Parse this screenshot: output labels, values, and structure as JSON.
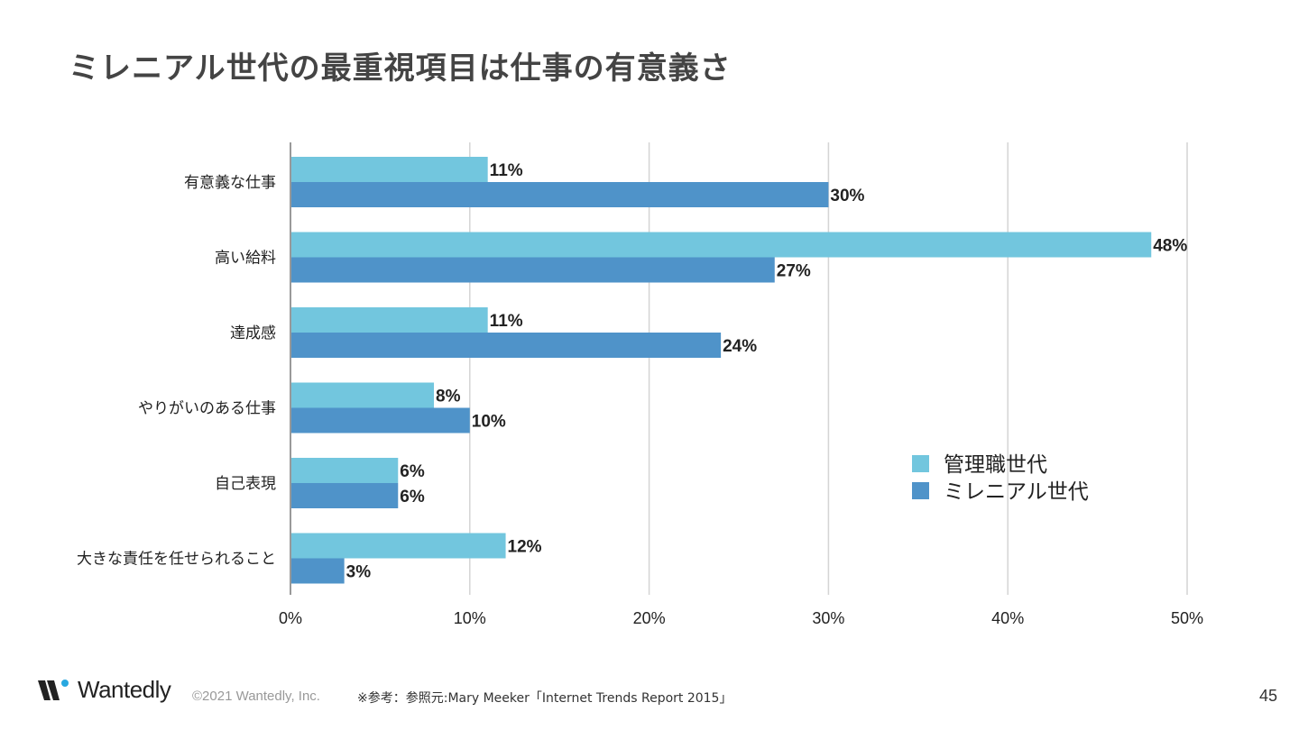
{
  "title": "ミレニアル世代の最重視項目は仕事の有意義さ",
  "chart_data": {
    "type": "bar",
    "orientation": "horizontal",
    "categories": [
      "有意義な仕事",
      "高い給料",
      "達成感",
      "やりがいのある仕事",
      "自己表現",
      "大きな責任を任せられること"
    ],
    "series": [
      {
        "name": "管理職世代",
        "values": [
          11,
          48,
          11,
          8,
          6,
          12
        ],
        "color": "#72C6DE"
      },
      {
        "name": "ミレニアル世代",
        "values": [
          30,
          27,
          24,
          10,
          6,
          3
        ],
        "color": "#4F93C9"
      }
    ],
    "xlim": [
      0,
      50
    ],
    "xticks": [
      "0%",
      "10%",
      "20%",
      "30%",
      "40%",
      "50%"
    ],
    "value_suffix": "%",
    "grid": true,
    "legend_position": "lower-right"
  },
  "footer": {
    "logo": "Wantedly",
    "copyright": "©2021 Wantedly, Inc.",
    "reference": "※参考：参照元:Mary Meeker「Internet Trends Report 2015」",
    "page_number": "45"
  }
}
